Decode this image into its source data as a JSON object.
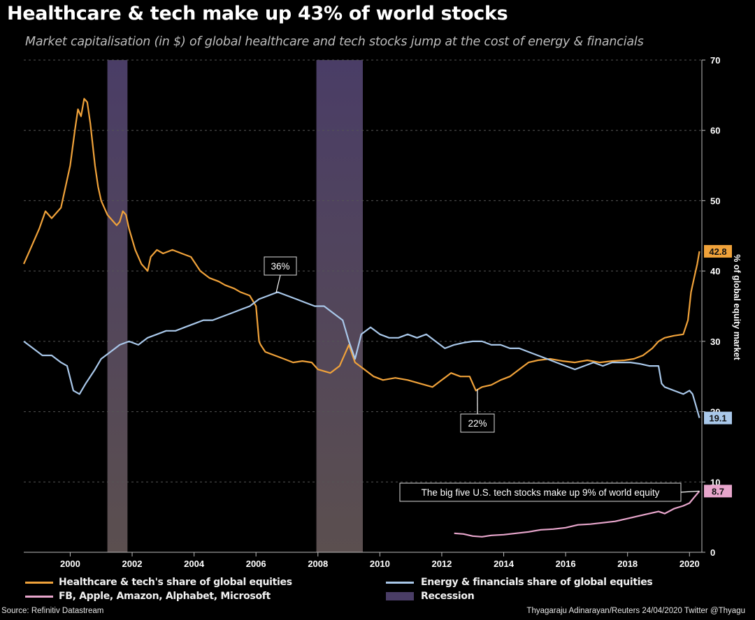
{
  "header": {
    "title": "Healthcare & tech make up 43% of world stocks",
    "subtitle": "Market capitalisation (in $) of global healthcare and tech stocks jump at the cost of energy & financials"
  },
  "footer": {
    "source": "Source: Refinitiv Datastream",
    "credit": "Thyagaraju Adinarayan/Reuters 24/04/2020 Twitter @Thyagu"
  },
  "colors": {
    "healthcare_tech": "#f0a23a",
    "energy_fin": "#a9c8ea",
    "big_five": "#e8a6cc",
    "recession": "#4a3d66",
    "grid": "#555555"
  },
  "chart_data": {
    "type": "line",
    "title": "Healthcare & tech make up 43% of world stocks",
    "ylabel": "% of global equity market",
    "ylim": [
      0,
      70
    ],
    "xlim": [
      1998.5,
      2020.4
    ],
    "y_ticks": [
      "0",
      "10",
      "20",
      "30",
      "40",
      "50",
      "60",
      "70"
    ],
    "x_ticks": [
      "2000",
      "2002",
      "2004",
      "2006",
      "2008",
      "2010",
      "2012",
      "2014",
      "2016",
      "2018",
      "2020"
    ],
    "grid": true,
    "legend_position": "bottom",
    "recessions": [
      [
        2001.2,
        2001.85
      ],
      [
        2007.95,
        2009.45
      ]
    ],
    "series": [
      {
        "name": "Healthcare & tech's share of global equities",
        "x": [
          1998.5,
          1998.7,
          1998.9,
          1999.0,
          1999.2,
          1999.4,
          1999.5,
          1999.7,
          1999.8,
          2000.0,
          2000.15,
          2000.25,
          2000.35,
          2000.45,
          2000.55,
          2000.65,
          2000.8,
          2000.9,
          2001.0,
          2001.2,
          2001.4,
          2001.5,
          2001.6,
          2001.7,
          2001.8,
          2001.9,
          2002.1,
          2002.3,
          2002.5,
          2002.6,
          2002.8,
          2003.0,
          2003.3,
          2003.6,
          2003.9,
          2004.2,
          2004.5,
          2004.8,
          2005.0,
          2005.3,
          2005.5,
          2005.8,
          2006.0,
          2006.1,
          2006.15,
          2006.3,
          2006.6,
          2006.9,
          2007.2,
          2007.5,
          2007.8,
          2008.0,
          2008.4,
          2008.7,
          2009.0,
          2009.2,
          2009.5,
          2009.8,
          2010.1,
          2010.5,
          2010.9,
          2011.3,
          2011.7,
          2012.0,
          2012.3,
          2012.6,
          2012.9,
          2013.1,
          2013.3,
          2013.6,
          2013.9,
          2014.2,
          2014.5,
          2014.8,
          2015.1,
          2015.5,
          2015.9,
          2016.3,
          2016.7,
          2017.1,
          2017.5,
          2017.9,
          2018.2,
          2018.5,
          2018.8,
          2019.0,
          2019.2,
          2019.5,
          2019.8,
          2019.95,
          2020.05,
          2020.15,
          2020.25,
          2020.32
        ],
        "values": [
          41,
          43,
          45,
          46,
          48.5,
          47.5,
          48,
          49,
          51,
          55,
          60,
          63,
          62,
          64.5,
          64,
          61,
          55,
          52,
          50,
          48,
          47,
          46.5,
          47,
          48.5,
          48,
          46,
          43,
          41,
          40,
          42,
          43,
          42.5,
          43,
          42.5,
          42,
          40,
          39,
          38.5,
          38,
          37.5,
          37,
          36.5,
          35,
          30,
          29.5,
          28.5,
          28,
          27.5,
          27,
          27.2,
          27,
          26,
          25.5,
          26.5,
          29.5,
          27,
          26,
          25,
          24.5,
          24.8,
          24.5,
          24,
          23.5,
          24.5,
          25.5,
          25,
          25,
          23,
          23.5,
          23.8,
          24.5,
          25,
          26,
          27,
          27.3,
          27.5,
          27.2,
          27,
          27.3,
          27,
          27.2,
          27.3,
          27.5,
          28,
          29,
          30,
          30.5,
          30.8,
          31,
          33,
          37,
          39,
          41,
          42.8
        ]
      },
      {
        "name": "Energy & financials share of global equities",
        "x": [
          1998.5,
          1998.8,
          1999.1,
          1999.4,
          1999.7,
          1999.9,
          2000.1,
          2000.3,
          2000.5,
          2000.8,
          2001.0,
          2001.3,
          2001.6,
          2001.9,
          2002.2,
          2002.5,
          2002.8,
          2003.1,
          2003.4,
          2003.7,
          2004.0,
          2004.3,
          2004.6,
          2004.9,
          2005.2,
          2005.5,
          2005.8,
          2006.1,
          2006.4,
          2006.7,
          2007.0,
          2007.3,
          2007.6,
          2007.9,
          2008.2,
          2008.5,
          2008.8,
          2009.0,
          2009.2,
          2009.4,
          2009.7,
          2010.0,
          2010.3,
          2010.6,
          2010.9,
          2011.2,
          2011.5,
          2011.8,
          2012.1,
          2012.4,
          2012.7,
          2013.0,
          2013.3,
          2013.6,
          2013.9,
          2014.2,
          2014.5,
          2014.8,
          2015.1,
          2015.4,
          2015.7,
          2016.0,
          2016.3,
          2016.6,
          2016.9,
          2017.2,
          2017.5,
          2017.8,
          2018.1,
          2018.4,
          2018.7,
          2019.0,
          2019.1,
          2019.2,
          2019.5,
          2019.8,
          2020.0,
          2020.1,
          2020.2,
          2020.32
        ],
        "values": [
          30,
          29,
          28,
          28,
          27,
          26.5,
          23,
          22.5,
          24,
          26,
          27.5,
          28.5,
          29.5,
          30,
          29.5,
          30.5,
          31,
          31.5,
          31.5,
          32,
          32.5,
          33,
          33,
          33.5,
          34,
          34.5,
          35,
          36,
          36.5,
          37,
          36.5,
          36,
          35.5,
          35,
          35,
          34,
          33,
          30,
          27.5,
          31,
          32,
          31,
          30.5,
          30.5,
          31,
          30.5,
          31,
          30,
          29,
          29.5,
          29.8,
          30,
          30,
          29.5,
          29.5,
          29,
          29,
          28.5,
          28,
          27.5,
          27,
          26.5,
          26,
          26.5,
          27,
          26.5,
          27,
          27,
          27,
          26.8,
          26.5,
          26.5,
          24,
          23.5,
          23,
          22.5,
          23,
          22.5,
          21,
          19.1
        ]
      },
      {
        "name": "FB, Apple, Amazon, Alphabet, Microsoft",
        "x": [
          2012.4,
          2012.7,
          2013.0,
          2013.3,
          2013.6,
          2014.0,
          2014.4,
          2014.8,
          2015.2,
          2015.6,
          2016.0,
          2016.4,
          2016.8,
          2017.2,
          2017.6,
          2018.0,
          2018.4,
          2018.7,
          2019.0,
          2019.2,
          2019.5,
          2019.8,
          2020.0,
          2020.15,
          2020.32
        ],
        "values": [
          2.7,
          2.6,
          2.3,
          2.2,
          2.4,
          2.5,
          2.7,
          2.9,
          3.2,
          3.3,
          3.5,
          3.9,
          4.0,
          4.2,
          4.4,
          4.8,
          5.2,
          5.5,
          5.8,
          5.5,
          6.2,
          6.6,
          7.0,
          7.8,
          8.7
        ]
      }
    ],
    "end_labels": [
      "42.8",
      "19.1",
      "8.7"
    ],
    "annotations": [
      "36%",
      "22%",
      "The big five U.S. tech stocks make up 9% of world equity"
    ]
  },
  "legend": {
    "hc": "Healthcare & tech's share of global equities",
    "ef": "Energy & financials share of global equities",
    "b5": "FB, Apple, Amazon, Alphabet, Microsoft",
    "rec": "Recession"
  }
}
